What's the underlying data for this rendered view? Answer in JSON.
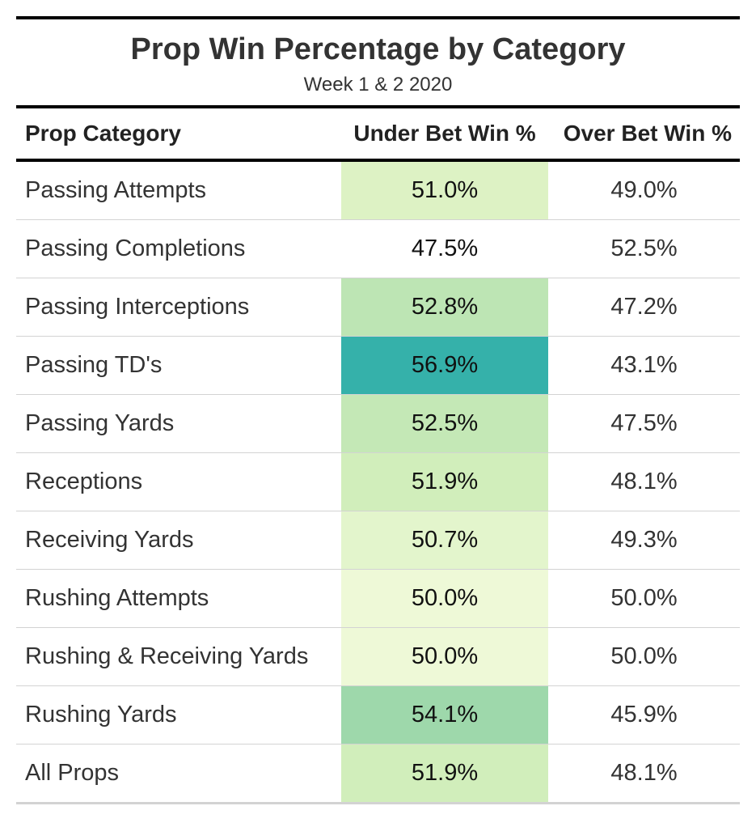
{
  "chart_data": {
    "type": "table",
    "title": "Prop Win Percentage by Category",
    "subtitle": "Week 1 & 2 2020",
    "columns": [
      "Prop Category",
      "Under Bet Win %",
      "Over Bet Win %"
    ],
    "rows": [
      {
        "category": "Passing Attempts",
        "under": "51.0%",
        "over": "49.0%",
        "under_value": 51.0,
        "over_value": 49.0,
        "under_color": "#ddf2c4"
      },
      {
        "category": "Passing Completions",
        "under": "47.5%",
        "over": "52.5%",
        "under_value": 47.5,
        "over_value": 52.5,
        "under_color": "#ffffff"
      },
      {
        "category": "Passing Interceptions",
        "under": "52.8%",
        "over": "47.2%",
        "under_value": 52.8,
        "over_value": 47.2,
        "under_color": "#bde5b4"
      },
      {
        "category": "Passing TD's",
        "under": "56.9%",
        "over": "43.1%",
        "under_value": 56.9,
        "over_value": 43.1,
        "under_color": "#35b1aa"
      },
      {
        "category": "Passing Yards",
        "under": "52.5%",
        "over": "47.5%",
        "under_value": 52.5,
        "over_value": 47.5,
        "under_color": "#c4e8b6"
      },
      {
        "category": "Receptions",
        "under": "51.9%",
        "over": "48.1%",
        "under_value": 51.9,
        "over_value": 48.1,
        "under_color": "#d1eebb"
      },
      {
        "category": "Receiving Yards",
        "under": "50.7%",
        "over": "49.3%",
        "under_value": 50.7,
        "over_value": 49.3,
        "under_color": "#e3f5cc"
      },
      {
        "category": "Rushing Attempts",
        "under": "50.0%",
        "over": "50.0%",
        "under_value": 50.0,
        "over_value": 50.0,
        "under_color": "#eef9d7"
      },
      {
        "category": "Rushing & Receiving Yards",
        "under": "50.0%",
        "over": "50.0%",
        "under_value": 50.0,
        "over_value": 50.0,
        "under_color": "#eef9d7"
      },
      {
        "category": "Rushing Yards",
        "under": "54.1%",
        "over": "45.9%",
        "under_value": 54.1,
        "over_value": 45.9,
        "under_color": "#9ed8ab"
      },
      {
        "category": "All Props",
        "under": "51.9%",
        "over": "48.1%",
        "under_value": 51.9,
        "over_value": 48.1,
        "under_color": "#d1eebb"
      }
    ]
  }
}
